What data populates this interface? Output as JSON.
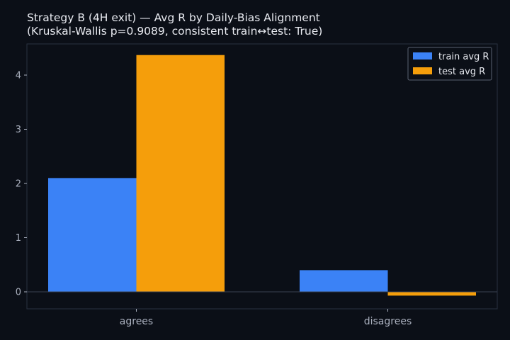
{
  "chart_data": {
    "type": "bar",
    "title_line1": "Strategy B (4H exit) — Avg R by Daily-Bias Alignment",
    "title_line2": "(Kruskal-Wallis p=0.9089, consistent train↔test: True)",
    "categories": [
      "agrees",
      "disagrees"
    ],
    "series": [
      {
        "name": "train avg R",
        "values": [
          2.1,
          0.4
        ],
        "color": "#3b82f6"
      },
      {
        "name": "test avg R",
        "values": [
          4.37,
          -0.07
        ],
        "color": "#f59e0b"
      }
    ],
    "yticks": [
      0,
      1,
      2,
      3,
      4
    ],
    "ylim": [
      -0.3,
      4.6
    ],
    "legend_position": "top-right",
    "grid": false
  },
  "colors": {
    "background": "#0b0f17",
    "axis": "#2a3140",
    "text": "#a9afbd"
  }
}
